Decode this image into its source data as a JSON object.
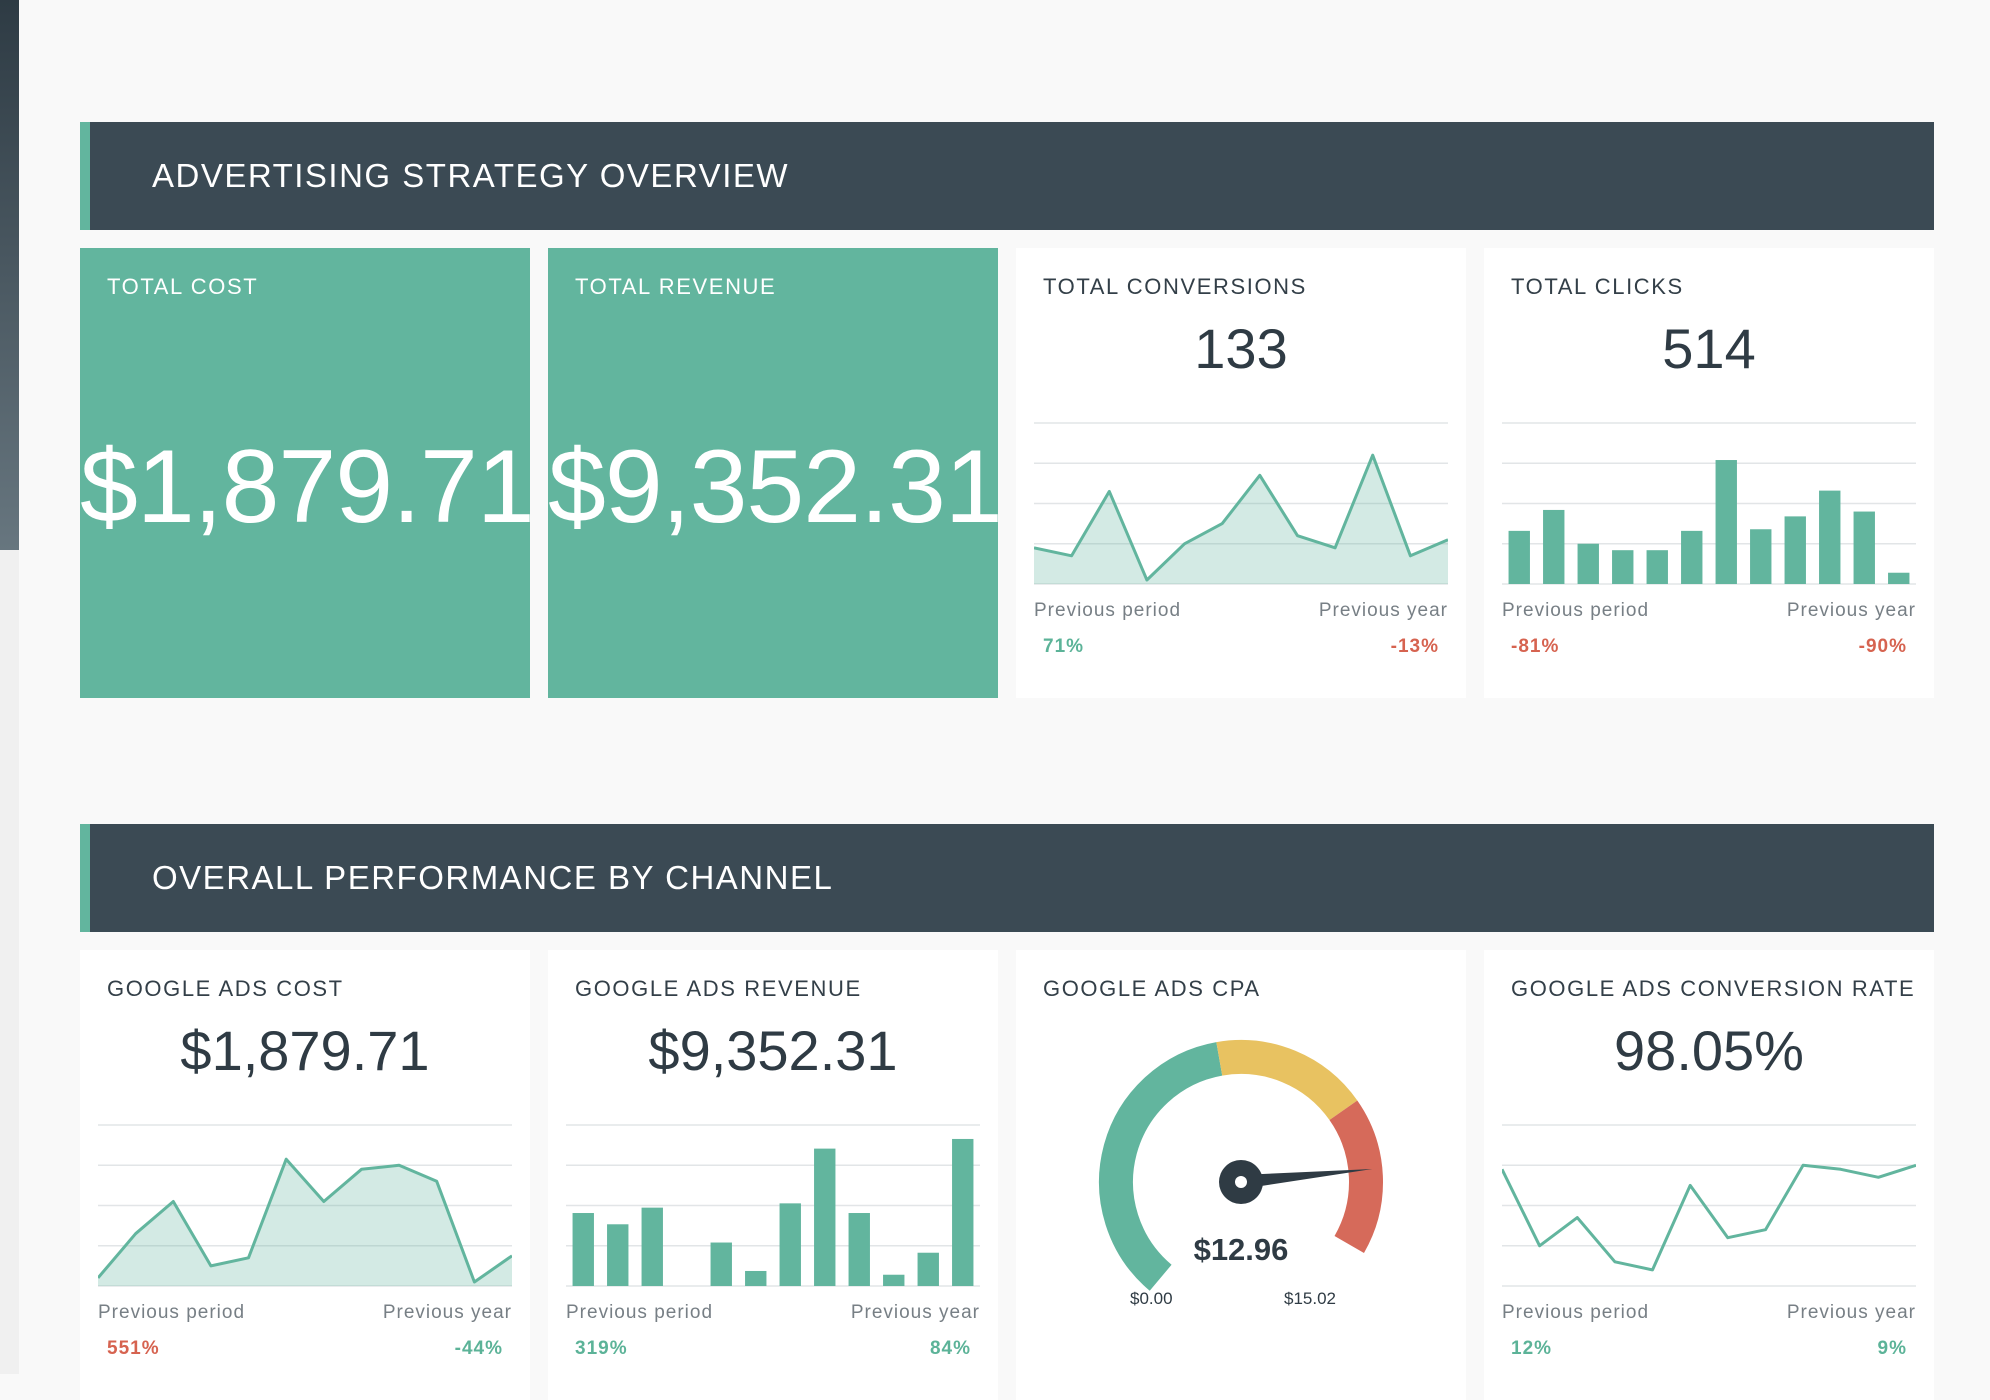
{
  "sections": [
    {
      "title": "ADVERTISING STRATEGY OVERVIEW"
    },
    {
      "title": "OVERALL PERFORMANCE BY CHANNEL"
    }
  ],
  "colors": {
    "accent": "#62b59e",
    "header_bg": "#3b4a54",
    "positive": "#5cb398",
    "negative": "#d66350",
    "gauge_yellow": "#e8c261",
    "gauge_red": "#d66a5a"
  },
  "tiles": {
    "total_cost": {
      "title": "TOTAL COST",
      "value": "$1,879.71"
    },
    "total_revenue": {
      "title": "TOTAL REVENUE",
      "value": "$9,352.31"
    },
    "total_conversions": {
      "title": "TOTAL CONVERSIONS",
      "value": "133",
      "prev_period_label": "Previous period",
      "prev_year_label": "Previous year",
      "prev_period_change": "71%",
      "prev_year_change": "-13%"
    },
    "total_clicks": {
      "title": "TOTAL CLICKS",
      "value": "514",
      "prev_period_label": "Previous period",
      "prev_year_label": "Previous year",
      "prev_period_change": "-81%",
      "prev_year_change": "-90%"
    },
    "google_ads_cost": {
      "title": "GOOGLE ADS COST",
      "value": "$1,879.71",
      "prev_period_label": "Previous period",
      "prev_year_label": "Previous year",
      "prev_period_change": "551%",
      "prev_year_change": "-44%"
    },
    "google_ads_revenue": {
      "title": "GOOGLE ADS REVENUE",
      "value": "$9,352.31",
      "prev_period_label": "Previous period",
      "prev_year_label": "Previous year",
      "prev_period_change": "319%",
      "prev_year_change": "84%"
    },
    "google_ads_cpa": {
      "title": "GOOGLE ADS CPA",
      "value": "$12.96",
      "min": "$0.00",
      "max": "$15.02"
    },
    "google_ads_conversion_rate": {
      "title": "GOOGLE ADS CONVERSION RATE",
      "value": "98.05%",
      "prev_period_label": "Previous period",
      "prev_year_label": "Previous year",
      "prev_period_change": "12%",
      "prev_year_change": "9%"
    }
  },
  "chart_data": [
    {
      "id": "conversions",
      "type": "area",
      "ylim": [
        0,
        4
      ],
      "values": [
        0.9,
        0.7,
        2.3,
        0.1,
        1.0,
        1.5,
        2.7,
        1.2,
        0.9,
        3.2,
        0.7,
        1.1
      ]
    },
    {
      "id": "clicks",
      "type": "bar",
      "ylim": [
        0,
        100
      ],
      "values": [
        33,
        46,
        25,
        21,
        21,
        33,
        77,
        34,
        42,
        58,
        45,
        7
      ]
    },
    {
      "id": "cost",
      "type": "area",
      "ylim": [
        0,
        400
      ],
      "values": [
        20,
        130,
        210,
        50,
        70,
        315,
        210,
        290,
        300,
        260,
        10,
        75
      ]
    },
    {
      "id": "revenue",
      "type": "bar",
      "ylim": [
        0,
        1500
      ],
      "values": [
        680,
        575,
        730,
        0,
        405,
        140,
        770,
        1280,
        680,
        105,
        310,
        1370
      ]
    },
    {
      "id": "conversion_rate",
      "type": "line",
      "ylim": [
        0,
        4
      ],
      "values": [
        2.9,
        1.0,
        1.7,
        0.6,
        0.4,
        2.5,
        1.2,
        1.4,
        3.0,
        2.9,
        2.7,
        3.0
      ]
    },
    {
      "id": "cpa",
      "type": "gauge",
      "min": 0.0,
      "max": 15.02,
      "value": 12.96,
      "bands": [
        {
          "from": 0,
          "to": 0.5,
          "color": "#62b59e"
        },
        {
          "from": 0.5,
          "to": 0.75,
          "color": "#e8c261"
        },
        {
          "from": 0.75,
          "to": 1.0,
          "color": "#d66a5a"
        }
      ]
    }
  ]
}
